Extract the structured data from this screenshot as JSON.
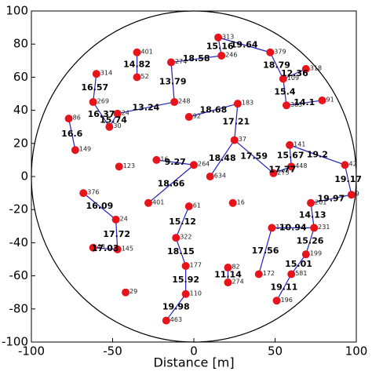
{
  "chart_data": {
    "type": "network",
    "xlabel": "Distance [m]",
    "xlim": [
      -100,
      100
    ],
    "ylim": [
      -100,
      100
    ],
    "xticks": [
      -100,
      -50,
      0,
      50,
      100
    ],
    "yticks": [
      -100,
      -80,
      -60,
      -40,
      -20,
      0,
      20,
      40,
      60,
      80,
      100
    ],
    "node_color": "#e8141c",
    "edge_color": "#2020c0",
    "labels": [
      "401",
      "52",
      "274",
      "314",
      "269",
      "86",
      "149",
      "123",
      "24",
      "30",
      "16",
      "401",
      "264",
      "634",
      "273",
      "37",
      "16",
      "61",
      "376",
      "322",
      "177",
      "110",
      "463",
      "29",
      "246",
      "313",
      "379",
      "109",
      "318",
      "91",
      "383",
      "183",
      "248",
      "92",
      "141",
      "42",
      "448",
      "9",
      "231",
      "201",
      "199",
      "581",
      "196",
      "133",
      "172",
      "274",
      "82",
      "43",
      "145",
      "24"
    ],
    "x": [
      -35,
      -35,
      -14,
      -60,
      -62,
      -77,
      -73,
      -46,
      -47,
      -52,
      -23,
      -28,
      0,
      10,
      49,
      25,
      24,
      -3,
      -68,
      -11,
      -5,
      -5,
      -17,
      -42,
      17,
      15,
      47,
      55,
      69,
      79,
      57,
      27,
      -12,
      -3,
      59,
      93,
      60,
      97,
      74,
      72,
      69,
      60,
      51,
      48,
      40,
      21,
      21,
      -62,
      -47,
      -48
    ],
    "y": [
      75,
      60,
      69,
      62,
      45,
      35,
      16,
      6,
      38,
      30,
      10,
      -16,
      7,
      0,
      2,
      22,
      -16,
      -18,
      -10,
      -37,
      -54,
      -71,
      -87,
      -70,
      73,
      84,
      75,
      59,
      65,
      46,
      43,
      44,
      45,
      36,
      19,
      7,
      6,
      -11,
      -31,
      -16,
      -47,
      -59,
      -75,
      -31,
      -59,
      -64,
      -55,
      -43,
      -44,
      -26
    ],
    "edges": [
      {
        "from": 0,
        "to": 1,
        "label": 14.82
      },
      {
        "from": 3,
        "to": 4,
        "label": 16.57
      },
      {
        "from": 5,
        "to": 6,
        "label": 16.6
      },
      {
        "from": 4,
        "to": 9,
        "label": 16.37
      },
      {
        "from": 9,
        "to": 8,
        "label": 15.74
      },
      {
        "from": 8,
        "to": 32,
        "label": 13.24
      },
      {
        "from": 32,
        "to": 2,
        "label": 13.79
      },
      {
        "from": 2,
        "to": 24,
        "label": 18.58
      },
      {
        "from": 24,
        "to": 25,
        "label": 15.16
      },
      {
        "from": 25,
        "to": 26,
        "label": 19.64
      },
      {
        "from": 26,
        "to": 27,
        "label": 18.79
      },
      {
        "from": 27,
        "to": 28,
        "label": 12.36
      },
      {
        "from": 27,
        "to": 30,
        "label": 15.4
      },
      {
        "from": 30,
        "to": 29,
        "label": 14.1
      },
      {
        "from": 31,
        "to": 15,
        "label": 17.21
      },
      {
        "from": 33,
        "to": 31,
        "label": 18.68
      },
      {
        "from": 15,
        "to": 13,
        "label": 18.48
      },
      {
        "from": 12,
        "to": 10,
        "label": 9.27
      },
      {
        "from": 12,
        "to": 11,
        "label": 18.66
      },
      {
        "from": 15,
        "to": 14,
        "label": 17.59
      },
      {
        "from": 14,
        "to": 36,
        "label": 17.77
      },
      {
        "from": 36,
        "to": 34,
        "label": 15.67
      },
      {
        "from": 34,
        "to": 35,
        "label": 19.2
      },
      {
        "from": 35,
        "to": 37,
        "label": 19.17
      },
      {
        "from": 37,
        "to": 39,
        "label": 19.97
      },
      {
        "from": 39,
        "to": 38,
        "label": 14.13
      },
      {
        "from": 38,
        "to": 40,
        "label": 15.26
      },
      {
        "from": 40,
        "to": 41,
        "label": 15.01
      },
      {
        "from": 41,
        "to": 42,
        "label": 19.11
      },
      {
        "from": 43,
        "to": 38,
        "label": 10.94
      },
      {
        "from": 43,
        "to": 44,
        "label": 17.56
      },
      {
        "from": 46,
        "to": 45,
        "label": 11.14
      },
      {
        "from": 17,
        "to": 19,
        "label": 15.12
      },
      {
        "from": 19,
        "to": 20,
        "label": 18.15
      },
      {
        "from": 20,
        "to": 21,
        "label": 15.92
      },
      {
        "from": 21,
        "to": 22,
        "label": 19.98
      },
      {
        "from": 18,
        "to": 49,
        "label": 16.09
      },
      {
        "from": 49,
        "to": 48,
        "label": 17.72
      },
      {
        "from": 48,
        "to": 47,
        "label": 17.03
      }
    ]
  }
}
